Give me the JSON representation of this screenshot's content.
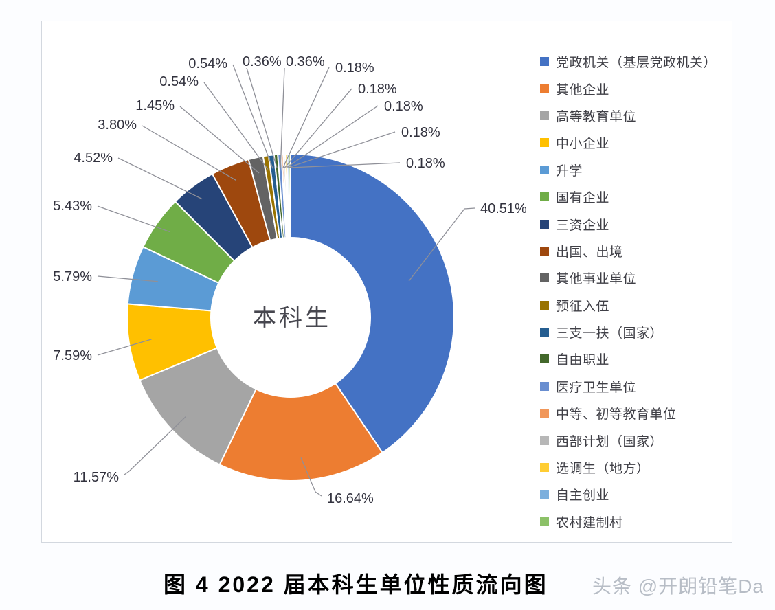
{
  "chart_data": {
    "type": "pie",
    "subtype": "donut",
    "center_label": "本科生",
    "legend_position": "right",
    "value_format": "percent",
    "series": [
      {
        "label": "党政机关（基层党政机关）",
        "value": 40.51,
        "color": "#4472C4"
      },
      {
        "label": "其他企业",
        "value": 16.64,
        "color": "#ED7D31"
      },
      {
        "label": "高等教育单位",
        "value": 11.57,
        "color": "#A5A5A5"
      },
      {
        "label": "中小企业",
        "value": 7.59,
        "color": "#FFC000"
      },
      {
        "label": "升学",
        "value": 5.79,
        "color": "#5B9BD5"
      },
      {
        "label": "国有企业",
        "value": 5.43,
        "color": "#70AD47"
      },
      {
        "label": "三资企业",
        "value": 4.52,
        "color": "#264478"
      },
      {
        "label": "出国、出境",
        "value": 3.8,
        "color": "#9E480E"
      },
      {
        "label": "其他事业单位",
        "value": 1.45,
        "color": "#636363"
      },
      {
        "label": "预征入伍",
        "value": 0.54,
        "color": "#997300"
      },
      {
        "label": "三支一扶（国家）",
        "value": 0.54,
        "color": "#255E91"
      },
      {
        "label": "自由职业",
        "value": 0.36,
        "color": "#43682B"
      },
      {
        "label": "医疗卫生单位",
        "value": 0.36,
        "color": "#698ED0"
      },
      {
        "label": "中等、初等教育单位",
        "value": 0.18,
        "color": "#F1975A"
      },
      {
        "label": "西部计划（国家）",
        "value": 0.18,
        "color": "#B7B7B7"
      },
      {
        "label": "选调生（地方）",
        "value": 0.18,
        "color": "#FFCD33"
      },
      {
        "label": "自主创业",
        "value": 0.18,
        "color": "#7CAFDD"
      },
      {
        "label": "农村建制村",
        "value": 0.18,
        "color": "#8CC168"
      }
    ],
    "data_label_suffix": "%"
  },
  "caption": {
    "title": "图 4  2022 届本科生单位性质流向图"
  },
  "watermark": {
    "text": "头条 @开朗铅笔Da"
  }
}
